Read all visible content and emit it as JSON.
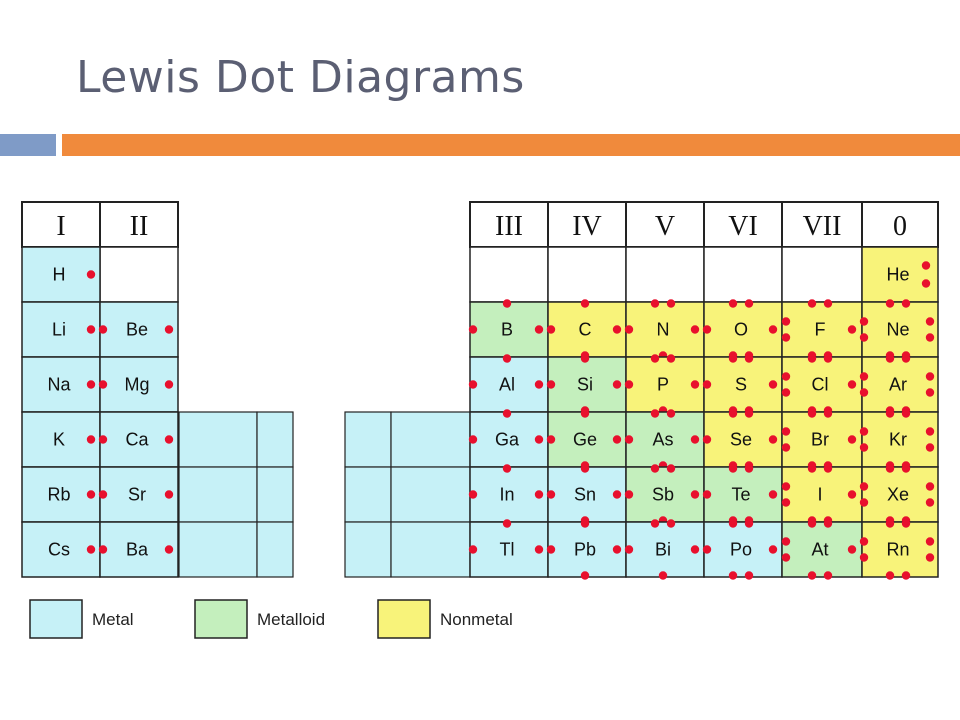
{
  "title": "Lewis Dot Diagrams",
  "colors": {
    "metal": "#c6f1f7",
    "metalloid": "#c4efbd",
    "nonmetal": "#f8f37a",
    "dot": "#e8102d",
    "accent_blue": "#7f9bc7",
    "accent_orange": "#f08a3c"
  },
  "groups": [
    {
      "label": "I",
      "valence": 1
    },
    {
      "label": "II",
      "valence": 2
    },
    {
      "label": "III",
      "valence": 3
    },
    {
      "label": "IV",
      "valence": 4
    },
    {
      "label": "V",
      "valence": 5
    },
    {
      "label": "VI",
      "valence": 6
    },
    {
      "label": "VII",
      "valence": 7
    },
    {
      "label": "0",
      "valence": 8
    }
  ],
  "elements": [
    {
      "symbol": "H",
      "group": 0,
      "period": 0,
      "type": "metal",
      "valence": 1
    },
    {
      "symbol": "He",
      "group": 7,
      "period": 0,
      "type": "nonmetal",
      "valence": 2
    },
    {
      "symbol": "Li",
      "group": 0,
      "period": 1,
      "type": "metal",
      "valence": 1
    },
    {
      "symbol": "Be",
      "group": 1,
      "period": 1,
      "type": "metal",
      "valence": 2
    },
    {
      "symbol": "B",
      "group": 2,
      "period": 1,
      "type": "metalloid",
      "valence": 3
    },
    {
      "symbol": "C",
      "group": 3,
      "period": 1,
      "type": "nonmetal",
      "valence": 4
    },
    {
      "symbol": "N",
      "group": 4,
      "period": 1,
      "type": "nonmetal",
      "valence": 5
    },
    {
      "symbol": "O",
      "group": 5,
      "period": 1,
      "type": "nonmetal",
      "valence": 6
    },
    {
      "symbol": "F",
      "group": 6,
      "period": 1,
      "type": "nonmetal",
      "valence": 7
    },
    {
      "symbol": "Ne",
      "group": 7,
      "period": 1,
      "type": "nonmetal",
      "valence": 8
    },
    {
      "symbol": "Na",
      "group": 0,
      "period": 2,
      "type": "metal",
      "valence": 1
    },
    {
      "symbol": "Mg",
      "group": 1,
      "period": 2,
      "type": "metal",
      "valence": 2
    },
    {
      "symbol": "Al",
      "group": 2,
      "period": 2,
      "type": "metal",
      "valence": 3
    },
    {
      "symbol": "Si",
      "group": 3,
      "period": 2,
      "type": "metalloid",
      "valence": 4
    },
    {
      "symbol": "P",
      "group": 4,
      "period": 2,
      "type": "nonmetal",
      "valence": 5
    },
    {
      "symbol": "S",
      "group": 5,
      "period": 2,
      "type": "nonmetal",
      "valence": 6
    },
    {
      "symbol": "Cl",
      "group": 6,
      "period": 2,
      "type": "nonmetal",
      "valence": 7
    },
    {
      "symbol": "Ar",
      "group": 7,
      "period": 2,
      "type": "nonmetal",
      "valence": 8
    },
    {
      "symbol": "K",
      "group": 0,
      "period": 3,
      "type": "metal",
      "valence": 1
    },
    {
      "symbol": "Ca",
      "group": 1,
      "period": 3,
      "type": "metal",
      "valence": 2
    },
    {
      "symbol": "Ga",
      "group": 2,
      "period": 3,
      "type": "metal",
      "valence": 3
    },
    {
      "symbol": "Ge",
      "group": 3,
      "period": 3,
      "type": "metalloid",
      "valence": 4
    },
    {
      "symbol": "As",
      "group": 4,
      "period": 3,
      "type": "metalloid",
      "valence": 5
    },
    {
      "symbol": "Se",
      "group": 5,
      "period": 3,
      "type": "nonmetal",
      "valence": 6
    },
    {
      "symbol": "Br",
      "group": 6,
      "period": 3,
      "type": "nonmetal",
      "valence": 7
    },
    {
      "symbol": "Kr",
      "group": 7,
      "period": 3,
      "type": "nonmetal",
      "valence": 8
    },
    {
      "symbol": "Rb",
      "group": 0,
      "period": 4,
      "type": "metal",
      "valence": 1
    },
    {
      "symbol": "Sr",
      "group": 1,
      "period": 4,
      "type": "metal",
      "valence": 2
    },
    {
      "symbol": "In",
      "group": 2,
      "period": 4,
      "type": "metal",
      "valence": 3
    },
    {
      "symbol": "Sn",
      "group": 3,
      "period": 4,
      "type": "metal",
      "valence": 4
    },
    {
      "symbol": "Sb",
      "group": 4,
      "period": 4,
      "type": "metalloid",
      "valence": 5
    },
    {
      "symbol": "Te",
      "group": 5,
      "period": 4,
      "type": "metalloid",
      "valence": 6
    },
    {
      "symbol": "I",
      "group": 6,
      "period": 4,
      "type": "nonmetal",
      "valence": 7
    },
    {
      "symbol": "Xe",
      "group": 7,
      "period": 4,
      "type": "nonmetal",
      "valence": 8
    },
    {
      "symbol": "Cs",
      "group": 0,
      "period": 5,
      "type": "metal",
      "valence": 1
    },
    {
      "symbol": "Ba",
      "group": 1,
      "period": 5,
      "type": "metal",
      "valence": 2
    },
    {
      "symbol": "Tl",
      "group": 2,
      "period": 5,
      "type": "metal",
      "valence": 3
    },
    {
      "symbol": "Pb",
      "group": 3,
      "period": 5,
      "type": "metal",
      "valence": 4
    },
    {
      "symbol": "Bi",
      "group": 4,
      "period": 5,
      "type": "metal",
      "valence": 5
    },
    {
      "symbol": "Po",
      "group": 5,
      "period": 5,
      "type": "metal",
      "valence": 6
    },
    {
      "symbol": "At",
      "group": 6,
      "period": 5,
      "type": "metalloid",
      "valence": 7
    },
    {
      "symbol": "Rn",
      "group": 7,
      "period": 5,
      "type": "nonmetal",
      "valence": 8
    }
  ],
  "legend": [
    {
      "type": "metal",
      "label": "Metal"
    },
    {
      "type": "metalloid",
      "label": "Metalloid"
    },
    {
      "type": "nonmetal",
      "label": "Nonmetal"
    }
  ]
}
